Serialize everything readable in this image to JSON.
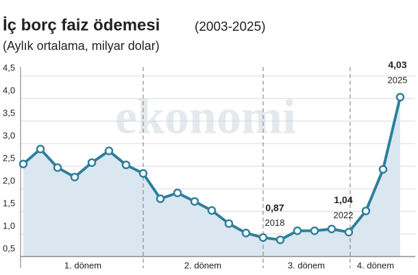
{
  "chart_data": {
    "type": "line",
    "title": "İç borç faiz ödemesi",
    "title_note": "(2003-2025)",
    "subtitle": "(Aylık ortalama, milyar dolar)",
    "watermark": "ekonomi",
    "categories": [
      null,
      null,
      null,
      null,
      null,
      null,
      null,
      null,
      null,
      null,
      null,
      null,
      null,
      null,
      null,
      "2018",
      null,
      null,
      null,
      "2022",
      null,
      null,
      "2025"
    ],
    "values": [
      2.55,
      2.88,
      2.47,
      2.26,
      2.58,
      2.84,
      2.53,
      2.34,
      1.78,
      1.91,
      1.72,
      1.52,
      1.23,
      1.02,
      0.92,
      0.87,
      1.07,
      1.07,
      1.11,
      1.04,
      1.51,
      2.43,
      4.03
    ],
    "value_labels": [
      null,
      null,
      null,
      null,
      null,
      null,
      null,
      null,
      null,
      null,
      null,
      null,
      null,
      null,
      null,
      "0,87",
      null,
      null,
      null,
      "1,04",
      null,
      null,
      "4,03"
    ],
    "color": "#2e7f9b",
    "area_color": "#dbe7f0",
    "ylim": [
      0.5,
      4.5
    ],
    "yticks": [
      {
        "value": 0.5,
        "label": "0,5"
      },
      {
        "value": 1.0,
        "label": "1,0"
      },
      {
        "value": 1.5,
        "label": "1,5"
      },
      {
        "value": 2.0,
        "label": "2,0"
      },
      {
        "value": 2.5,
        "label": "2,5"
      },
      {
        "value": 3.0,
        "label": "3,0"
      },
      {
        "value": 3.5,
        "label": "3,5"
      },
      {
        "value": 4.0,
        "label": "4,0"
      },
      {
        "value": 4.5,
        "label": "4,5"
      }
    ],
    "periods": [
      "1. dönem",
      "2. dönem",
      "3. dönem",
      "4. dönem"
    ]
  }
}
